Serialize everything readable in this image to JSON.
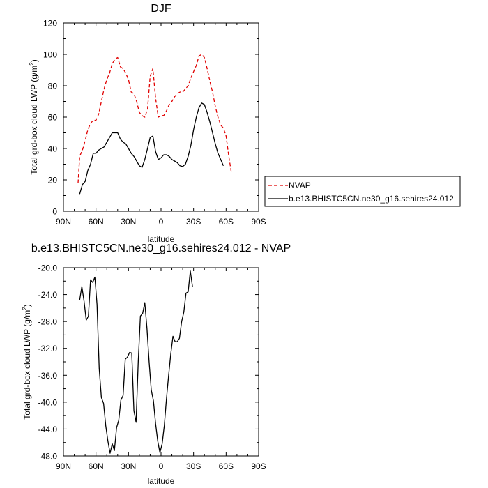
{
  "chart_data": [
    {
      "type": "line",
      "title": "DJF",
      "xlabel": "latitude",
      "ylabel_main": "Total grd-box cloud LWP (g/m",
      "ylabel_sup": "2",
      "ylabel_close": ")",
      "xlim": [
        90,
        -90
      ],
      "ylim": [
        0,
        120
      ],
      "xticks": [
        90,
        60,
        30,
        0,
        -30,
        -60,
        -90
      ],
      "xtick_labels": [
        "90N",
        "60N",
        "30N",
        "0",
        "30S",
        "60S",
        "90S"
      ],
      "yticks": [
        0,
        20,
        40,
        60,
        80,
        100,
        120
      ],
      "ytick_labels": [
        "0",
        "20",
        "40",
        "60",
        "80",
        "100",
        "120"
      ],
      "legend_placement": "right",
      "series": [
        {
          "name": "NVAP",
          "color": "#e00000",
          "dash": "dashed",
          "points": [
            [
              76.5,
              18
            ],
            [
              75,
              35
            ],
            [
              72,
              40
            ],
            [
              70,
              45
            ],
            [
              67.5,
              52
            ],
            [
              65,
              56
            ],
            [
              62.5,
              58
            ],
            [
              60,
              58
            ],
            [
              57.5,
              62
            ],
            [
              55,
              70
            ],
            [
              52.5,
              78
            ],
            [
              50,
              84
            ],
            [
              47.5,
              88
            ],
            [
              45,
              94
            ],
            [
              42.5,
              97
            ],
            [
              40,
              98
            ],
            [
              37.5,
              92
            ],
            [
              35,
              91
            ],
            [
              32.5,
              88
            ],
            [
              30,
              84
            ],
            [
              27.5,
              76
            ],
            [
              25,
              75
            ],
            [
              22.5,
              70
            ],
            [
              20,
              63
            ],
            [
              17.5,
              61
            ],
            [
              15,
              60
            ],
            [
              12.5,
              65
            ],
            [
              10,
              86
            ],
            [
              7.5,
              91
            ],
            [
              5,
              72
            ],
            [
              2.5,
              60
            ],
            [
              0,
              61
            ],
            [
              -2.5,
              61
            ],
            [
              -5,
              64
            ],
            [
              -7.5,
              68
            ],
            [
              -10,
              70
            ],
            [
              -12.5,
              73
            ],
            [
              -15,
              75
            ],
            [
              -17.5,
              76
            ],
            [
              -20,
              76
            ],
            [
              -22.5,
              78
            ],
            [
              -25,
              80
            ],
            [
              -27.5,
              85
            ],
            [
              -30,
              89
            ],
            [
              -32.5,
              93
            ],
            [
              -35,
              99
            ],
            [
              -37.5,
              100
            ],
            [
              -40,
              98
            ],
            [
              -42.5,
              91
            ],
            [
              -45,
              83
            ],
            [
              -47.5,
              76
            ],
            [
              -50,
              67
            ],
            [
              -52.5,
              60
            ],
            [
              -55,
              55
            ],
            [
              -57.5,
              53
            ],
            [
              -60,
              48
            ],
            [
              -62.5,
              35
            ],
            [
              -65,
              24
            ]
          ]
        },
        {
          "name": "b.e13.BHISTC5CN.ne30_g16.sehires24.012",
          "color": "#000000",
          "dash": "solid",
          "points": [
            [
              75,
              11
            ],
            [
              72.5,
              17
            ],
            [
              70,
              19
            ],
            [
              67.5,
              26
            ],
            [
              65,
              30
            ],
            [
              62.5,
              37
            ],
            [
              60,
              37
            ],
            [
              57.5,
              39
            ],
            [
              55,
              40
            ],
            [
              52.5,
              41
            ],
            [
              50,
              44
            ],
            [
              47.5,
              47
            ],
            [
              45,
              50
            ],
            [
              42.5,
              50
            ],
            [
              40,
              50
            ],
            [
              37.5,
              46
            ],
            [
              35,
              44
            ],
            [
              32.5,
              43
            ],
            [
              30,
              40
            ],
            [
              27.5,
              37
            ],
            [
              25,
              35
            ],
            [
              22.5,
              32
            ],
            [
              20,
              29
            ],
            [
              17.5,
              28
            ],
            [
              15,
              33
            ],
            [
              12.5,
              40
            ],
            [
              10,
              47
            ],
            [
              7.5,
              48
            ],
            [
              5,
              38
            ],
            [
              2.5,
              33
            ],
            [
              0,
              34
            ],
            [
              -2.5,
              36
            ],
            [
              -5,
              36
            ],
            [
              -7.5,
              35
            ],
            [
              -10,
              33
            ],
            [
              -12.5,
              32
            ],
            [
              -15,
              31
            ],
            [
              -17.5,
              29
            ],
            [
              -20,
              28.5
            ],
            [
              -22.5,
              30
            ],
            [
              -25,
              35
            ],
            [
              -27.5,
              42
            ],
            [
              -30,
              52
            ],
            [
              -32.5,
              60
            ],
            [
              -35,
              66
            ],
            [
              -37.5,
              69
            ],
            [
              -40,
              68
            ],
            [
              -42.5,
              63
            ],
            [
              -45,
              57
            ],
            [
              -47.5,
              50
            ],
            [
              -50,
              43
            ],
            [
              -52.5,
              37
            ],
            [
              -55,
              33
            ],
            [
              -57.5,
              29
            ]
          ]
        }
      ]
    },
    {
      "type": "line",
      "title": "b.e13.BHISTC5CN.ne30_g16.sehires24.012 - NVAP",
      "xlabel": "latitude",
      "ylabel_main": "Total grd-box cloud LWP (g/m",
      "ylabel_sup": "2",
      "ylabel_close": ")",
      "xlim": [
        90,
        -90
      ],
      "ylim": [
        -48,
        -20
      ],
      "xticks": [
        90,
        60,
        30,
        0,
        -30,
        -60,
        -90
      ],
      "xtick_labels": [
        "90N",
        "60N",
        "30N",
        "0",
        "30S",
        "60S",
        "90S"
      ],
      "yticks": [
        -48,
        -44,
        -40,
        -36,
        -32,
        -28,
        -24,
        -20
      ],
      "ytick_labels": [
        "-48.0",
        "-44.0",
        "-40.0",
        "-36.0",
        "-32.0",
        "-28.0",
        "-24.0",
        "-20.0"
      ],
      "series": [
        {
          "color": "#000000",
          "dash": "solid",
          "points": [
            [
              75,
              -24.8
            ],
            [
              73,
              -22.8
            ],
            [
              71,
              -25
            ],
            [
              69,
              -27.8
            ],
            [
              67,
              -27.2
            ],
            [
              65,
              -21.8
            ],
            [
              63,
              -22.2
            ],
            [
              61,
              -21.4
            ],
            [
              59,
              -25.5
            ],
            [
              57,
              -35
            ],
            [
              55,
              -39.3
            ],
            [
              53,
              -40.2
            ],
            [
              51,
              -43.5
            ],
            [
              49,
              -45.8
            ],
            [
              47,
              -47.6
            ],
            [
              45,
              -46.2
            ],
            [
              43,
              -47.2
            ],
            [
              41,
              -43.8
            ],
            [
              39,
              -42.7
            ],
            [
              37,
              -39.7
            ],
            [
              35,
              -39
            ],
            [
              33,
              -33.6
            ],
            [
              31,
              -33.3
            ],
            [
              29,
              -32.6
            ],
            [
              27,
              -32.7
            ],
            [
              25,
              -41.3
            ],
            [
              23,
              -43
            ],
            [
              21,
              -34
            ],
            [
              19,
              -27.2
            ],
            [
              17,
              -26.8
            ],
            [
              15,
              -25.2
            ],
            [
              13,
              -29
            ],
            [
              11,
              -34
            ],
            [
              9,
              -38.2
            ],
            [
              7,
              -39.8
            ],
            [
              5,
              -43.2
            ],
            [
              3,
              -45.8
            ],
            [
              1,
              -47.5
            ],
            [
              -1,
              -46.2
            ],
            [
              -3,
              -43.5
            ],
            [
              -5,
              -39.5
            ],
            [
              -7,
              -36
            ],
            [
              -9,
              -32.8
            ],
            [
              -11,
              -30.2
            ],
            [
              -13,
              -31
            ],
            [
              -15,
              -31
            ],
            [
              -17,
              -30.5
            ],
            [
              -19,
              -28
            ],
            [
              -21,
              -26.6
            ],
            [
              -23,
              -23.8
            ],
            [
              -25,
              -23.6
            ],
            [
              -27,
              -20.5
            ],
            [
              -29,
              -22.8
            ]
          ]
        }
      ]
    }
  ]
}
